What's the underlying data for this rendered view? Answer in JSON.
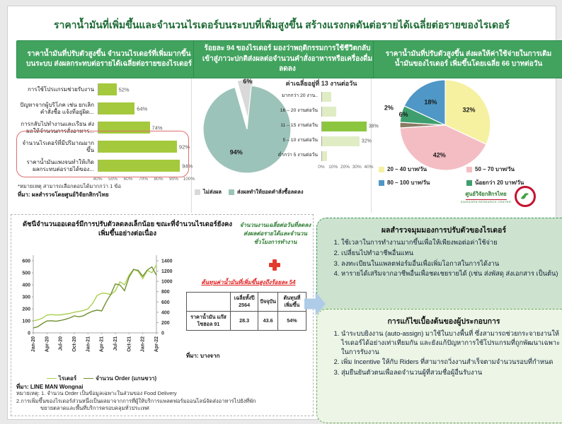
{
  "page": {
    "title": "ราคาน้ำมันที่เพิ่มขึ้นและจำนวนไรเดอร์บนระบบที่เพิ่มสูงขึ้น สร้างแรงกดดันต่อรายได้เฉลี่ยต่อรายของไรเดอร์"
  },
  "panels": {
    "impact": {
      "header": "ราคาน้ำมันที่ปรับตัวสูงขึ้น จำนวนไรเดอร์ที่เพิ่มมากขึ้นบนระบบ ส่งผลกระทบต่อรายได้เฉลี่ยต่อรายของไรเดอร์",
      "note": "*หมายเหตุ สามารถเลือกตอบได้มากกว่า 1 ข้อ",
      "source": "ที่มา: ผลสำรวจโดยศูนย์วิจัยกสิกรไทย"
    },
    "behavior": {
      "header": "ร้อยละ 94 ของไรเดอร์ มองว่าพฤติกรรมการใช้ชีวิตกลับเข้าสู่ภาวะปกติส่งผลต่อจำนวนคำสั่งอาหารหรือเครื่องดื่มลดลง"
    },
    "fuel": {
      "header": "ราคาน้ำมันที่ปรับตัวสูงขึ้น ส่งผลให้ค่าใช้จ่ายในการเติมน้ำมันของไรเดอร์ เพิ่มขึ้นโดยเฉลี่ย 66 บาทต่อวัน",
      "logo_text": "ศูนย์วิจัยกสิกรไทย",
      "logo_subtext": "KASIKORN RESEARCH CENTER"
    }
  },
  "bottom": {
    "impact_text": "จำนวนงานเฉลี่ยต่อวันที่ลดลง ส่งผลต่อรายได้และจำนวนชั่วโมงการทำงาน",
    "cost_text": "ต้นทุนค่าน้ำมันที่เพิ่มขึ้นสูงถึงร้อยละ 54"
  },
  "boxes": {
    "adaptation": {
      "title": "ผลสำรวจมุมมองการปรับตัวของไรเดอร์",
      "items": [
        "ใช้เวลาในการทำงานมากขึ้นเพื่อให้เพียงพอต่อค่าใช้จ่าย",
        "เปลี่ยนไปทำอาชีพอื่นแทน",
        "ลงทะเบียนในแพลตฟอร์มอื่นเพื่อเพิ่มโอกาสในการได้งาน",
        "หารายได้เสริมจากอาชีพอื่นเพื่อชดเชยรายได้ (เช่น ส่งพัสดุ ส่งเอกสาร เป็นต้น)"
      ]
    },
    "operator": {
      "title": "การแก้ไขเบื้องต้นของผู้ประกอบการ",
      "items": [
        "นำระบบยิงงาน (auto-assign) มาใช้ในบางพื้นที่ ซึ่งสามารถช่วยกระจายงานให้ไรเดอร์ได้อย่างเท่าเทียมกัน และยังแก้ปัญหาการใช้โปรแกรมที่ถูกพัฒนาเฉพาะในการรับงาน",
        "เพิ่ม Incentive ให้กับ Riders ที่สามารถวิ่งงานสำเร็จตามจำนวนรอบที่กำหนด",
        "สุ่มยืนยันตัวตนเพื่อลดจำนวนผู้ที่สวมชื่อผู้อื่นรับงาน"
      ]
    }
  },
  "chart_data": [
    {
      "id": "impact-factors-bar",
      "type": "bar",
      "orientation": "horizontal",
      "categories": [
        "การใช้โปรแกรมช่วยรับงาน",
        "ปัญหาจากผู้บริโภค เช่น ยกเลิกคำสั่งซื้อ แจ้งที่อยู่ผิด...",
        "การกลับไปทำงานและเรียน ส่งผลให้จำนวนการสั่งอาหาร...",
        "จำนวนไรเดอร์ที่มีปริมาณมากขึ้น",
        "ราคาน้ำมันแพงจนทำให้เกิดผลกระทบต่อรายได้ของ..."
      ],
      "values": [
        52,
        64,
        74,
        92,
        94
      ],
      "value_labels": [
        "52%",
        "64%",
        "74%",
        "92%",
        "94%"
      ],
      "xlim": [
        40,
        100
      ],
      "x_ticks": [
        "40%",
        "50%",
        "60%",
        "70%",
        "80%",
        "90%",
        "100%"
      ],
      "bar_color": "#a4c93c",
      "highlight_rows": [
        3,
        4
      ]
    },
    {
      "id": "order-effect-pie",
      "type": "pie",
      "start_angle": -16,
      "slices": [
        {
          "label": "ไม่ส่งผล",
          "value": 6,
          "color": "#d9d9d9",
          "pct_label": "6%",
          "label_r": 0.95,
          "label_angle": -2,
          "explode": [
            3,
            -9
          ]
        },
        {
          "label": "ส่งผลทำให้ยอดคำสั่งซื้อลดลง",
          "value": 94,
          "color": "#9cc3b9",
          "pct_label": "94%",
          "label_r": 0.58,
          "label_angle": 205
        }
      ],
      "legend": [
        {
          "label": "ไม่ส่งผล",
          "color": "#d9d9d9"
        },
        {
          "label": "ส่งผลทำให้ยอดคำสั่งซื้อลดลง",
          "color": "#9cc3b9"
        }
      ]
    },
    {
      "id": "jobs-per-day-bar",
      "type": "bar",
      "orientation": "horizontal",
      "title": "ค่าเฉลี่ยอยู่ที่ 13 งานต่อวัน",
      "categories": [
        "มากกว่า 20 งาน..",
        "16 – 20 งานต่อวัน",
        "11 – 15 งานต่อวัน",
        "5 – 10 งานต่อวัน",
        "ต่ำกว่า 5 งานต่อวัน"
      ],
      "values": [
        8,
        12,
        38,
        32,
        4
      ],
      "value_labels": [
        "",
        "",
        "38%",
        "32%",
        ""
      ],
      "xlim": [
        0,
        40
      ],
      "x_ticks": [
        "0%",
        "10%",
        "20%",
        "30%",
        "40%"
      ],
      "bar_color": "#e0edc4",
      "highlight_index": 2,
      "highlight_color": "#8cc63f"
    },
    {
      "id": "fuel-cost-pie",
      "type": "pie",
      "start_angle": 0,
      "slices": [
        {
          "label": "20 – 40 บาท/วัน",
          "value": 32,
          "color": "#f5f1a0",
          "pct_label": "32%",
          "label_r": 0.62
        },
        {
          "label": "50 – 70 บาท/วัน",
          "value": 42,
          "color": "#f4bdc4",
          "pct_label": "42%",
          "label_r": 0.68
        },
        {
          "label": "",
          "value": 2,
          "color": "#8a7a63",
          "pct_label": "2%",
          "label_r": 1.3,
          "label_angle": 287
        },
        {
          "label": "น้อยกว่า 20 บาท/วัน",
          "value": 6,
          "color": "#3f9e6e",
          "pct_label": "6%",
          "label_r": 0.95
        },
        {
          "label": "80 – 100 บาท/วัน",
          "value": 18,
          "color": "#4e97c6",
          "pct_label": "18%",
          "label_r": 0.6
        }
      ],
      "legend": [
        {
          "label": "20 – 40 บาท/วัน",
          "color": "#f5f1a0"
        },
        {
          "label": "50 – 70 บาท/วัน",
          "color": "#f4bdc4"
        },
        {
          "label": "80 – 100 บาท/วัน",
          "color": "#4e97c6"
        },
        {
          "label": "น้อยกว่า 20 บาท/วัน",
          "color": "#3f9e6e"
        }
      ]
    },
    {
      "id": "riders-orders-line",
      "type": "line",
      "title": "ดัชนีจำนวนออเดอร์มีการปรับตัวลดลงเล็กน้อย ขณะที่จำนวนไรเดอร์ยังคงเพิ่มขึ้นอย่างต่อเนื่อง",
      "x_ticks": [
        "Jan-20",
        "Apr-20",
        "Jul-20",
        "Oct-20",
        "Jan-21",
        "Apr-21",
        "Jul-21",
        "Oct-21",
        "Jan-22",
        "Apr-22"
      ],
      "x_tick_indices": [
        0,
        3,
        6,
        9,
        12,
        15,
        18,
        21,
        24,
        27
      ],
      "ylim_left": [
        0,
        600
      ],
      "yticks_left": [
        0,
        100,
        200,
        300,
        400,
        500,
        600
      ],
      "ylim_right": [
        0,
        1400
      ],
      "yticks_right": [
        0,
        200,
        400,
        600,
        800,
        1000,
        1200,
        1400
      ],
      "series": [
        {
          "name": "ไรเดอร์",
          "axis": "left",
          "color": "#a9cf4f",
          "values": [
            100,
            108,
            122,
            148,
            152,
            148,
            150,
            156,
            162,
            172,
            178,
            186,
            200,
            245,
            310,
            330,
            328,
            318,
            350,
            425,
            400,
            480,
            530,
            512,
            452,
            520,
            500,
            565
          ]
        },
        {
          "name": "จำนวน Order (แกนขวา)",
          "axis": "right",
          "color": "#6f8f2f",
          "values": [
            95,
            120,
            180,
            230,
            235,
            225,
            240,
            262,
            290,
            330,
            312,
            332,
            380,
            420,
            440,
            425,
            600,
            750,
            950,
            930,
            820,
            1080,
            1230,
            1215,
            1100,
            1220,
            1280,
            1120
          ]
        }
      ],
      "source": "ที่มา: LINE MAN Wongnai",
      "notes": [
        "หมายเหตุ: 1. จำนวน Order เป็นข้อมูลเฉพาะในส่วนของ Food Delivery",
        "2.การเพิ่มขึ้นของไรเดอร์ส่วนหนึ่งเป็นผลมาจากการที่ผู้ให้บริการแพลตฟอร์มออนไลน์จัดส่งอาหารไปยังที่พัก",
        "ขยายตลาดและพื้นที่บริการครอบคลุมทั่วประเทศ"
      ]
    },
    {
      "id": "fuel-price-table",
      "type": "table",
      "columns": [
        "",
        "เฉลี่ยทั้งปี 2564",
        "ปัจจุบัน",
        "ต้นทุนที่เพิ่มขึ้น"
      ],
      "rows": [
        [
          "ราคาน้ำมัน แก๊สโซฮอล 91",
          "28.3",
          "43.6",
          "54%"
        ]
      ],
      "source": "ที่มา: บางจาก"
    }
  ]
}
